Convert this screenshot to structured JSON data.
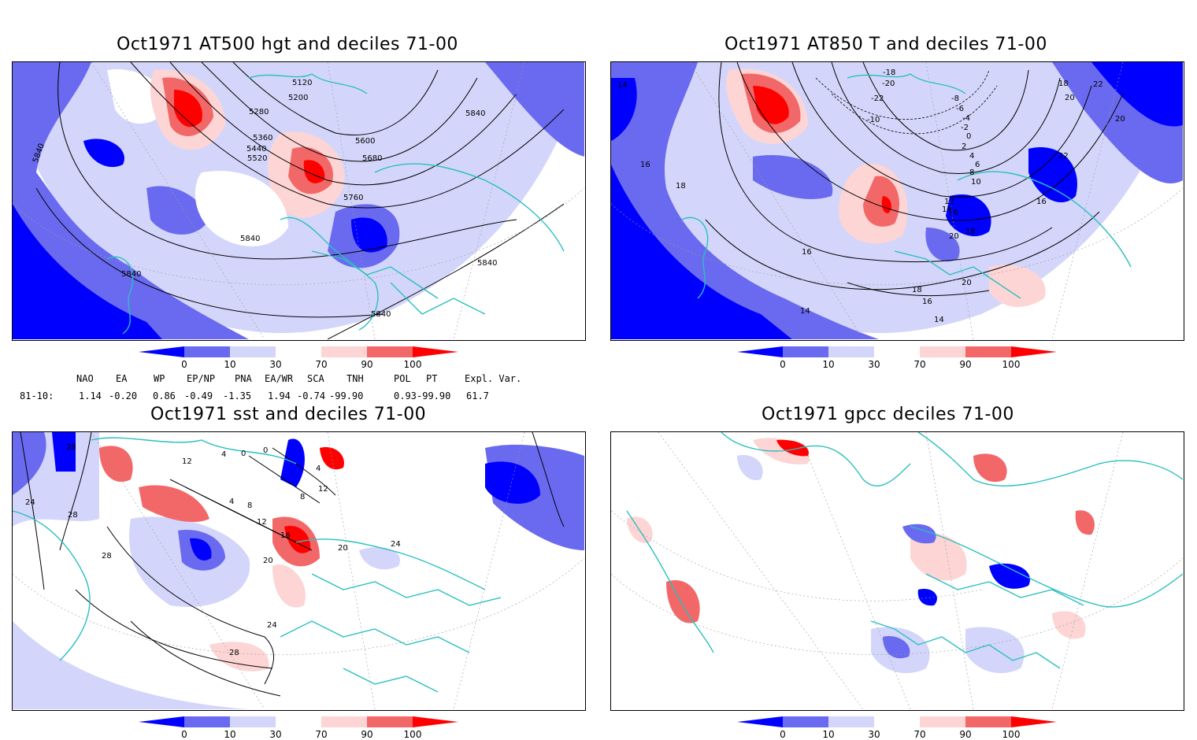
{
  "panels": [
    {
      "id": "hgt500",
      "title": "Oct1971 AT500 hgt and deciles 71-00",
      "contour_labels": [
        "5120",
        "5200",
        "5280",
        "5360",
        "5440",
        "5520",
        "5600",
        "5680",
        "5760",
        "5840",
        "5840",
        "5840",
        "5840",
        "5840",
        "5840"
      ]
    },
    {
      "id": "t850",
      "title": "Oct1971 AT850 T and deciles 71-00",
      "contour_labels": [
        "14",
        "16",
        "18",
        "-18",
        "-20",
        "-22",
        "-10",
        "-8",
        "-6",
        "-4",
        "-2",
        "0",
        "2",
        "4",
        "6",
        "8",
        "10",
        "12",
        "14",
        "16",
        "18",
        "20",
        "22",
        "20",
        "22",
        "16",
        "18",
        "20",
        "18",
        "16",
        "14",
        "14",
        "16",
        "18",
        "20"
      ]
    },
    {
      "id": "sst",
      "title": "Oct1971 sst and deciles 71-00",
      "contour_labels": [
        "28",
        "24",
        "28",
        "28",
        "12",
        "4",
        "0",
        "0",
        "4",
        "8",
        "12",
        "16",
        "20",
        "24",
        "20",
        "24",
        "28",
        "4",
        "8",
        "12"
      ]
    },
    {
      "id": "gpcc",
      "title": "Oct1971 gpcc deciles 71-00",
      "contour_labels": []
    }
  ],
  "colorbar": {
    "ticks": [
      "0",
      "10",
      "30",
      "70",
      "90",
      "100"
    ],
    "colors": [
      "#0000ff",
      "#6a6af0",
      "#d3d6fa",
      "#ffffff",
      "#fdd5d5",
      "#f26868",
      "#ff0000"
    ]
  },
  "indices": {
    "headers": [
      "NAO",
      "EA",
      "WP",
      "EP/NP",
      "PNA",
      "EA/WR",
      "SCA",
      "TNH",
      "POL",
      "PT",
      "Expl. Var."
    ],
    "row_label": "81-10:",
    "values": [
      "1.14",
      "-0.20",
      "0.86",
      "-0.49",
      "-1.35",
      "1.94",
      "-0.74",
      "-99.90",
      "0.93",
      "-99.90",
      "61.7"
    ]
  },
  "colors": {
    "coast": "#2bbfbf",
    "contour": "#000000",
    "grid": "#9a9a9a",
    "deep_blue": "#0000ff",
    "mid_blue": "#6a6af0",
    "light_blue": "#d3d6fa",
    "light_red": "#fdd5d5",
    "mid_red": "#f26868",
    "deep_red": "#ff0000"
  }
}
